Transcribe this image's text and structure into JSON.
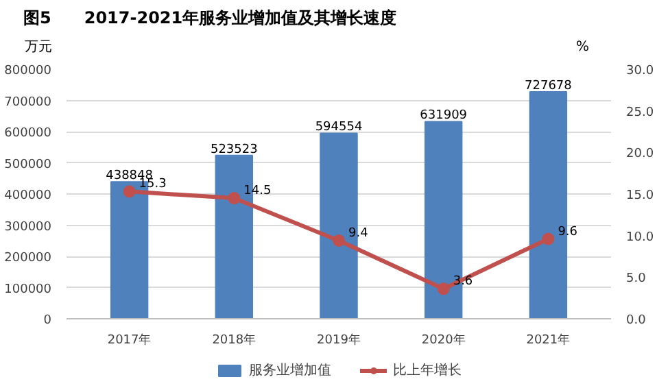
{
  "chart_data": {
    "type": "bar",
    "title": "图5　　2017-2021年服务业增加值及其增长速度",
    "ylabel": "万元",
    "y2label": "%",
    "categories": [
      "2017年",
      "2018年",
      "2019年",
      "2020年",
      "2021年"
    ],
    "series": [
      {
        "name": "服务业增加值",
        "color": "#4f81bd",
        "values": [
          438848,
          523523,
          594554,
          631909,
          727678
        ]
      },
      {
        "name": "比上年增长",
        "type": "line",
        "axis": "y2",
        "color": "#c0504d",
        "marker": "circle",
        "values": [
          15.3,
          14.5,
          9.4,
          3.6,
          9.6
        ]
      }
    ],
    "ylim": [
      0,
      800000
    ],
    "yticks": [
      0,
      100000,
      200000,
      300000,
      400000,
      500000,
      600000,
      700000,
      800000
    ],
    "y2lim": [
      0,
      30
    ],
    "y2ticks": [
      {
        "value": 0,
        "label": "0.0"
      },
      {
        "value": 5,
        "label": "5.0"
      },
      {
        "value": 10,
        "label": "10.0"
      },
      {
        "value": 15,
        "label": "15.0"
      },
      {
        "value": 20,
        "label": "20.0"
      },
      {
        "value": 25,
        "label": "25.0"
      },
      {
        "value": 30,
        "label": "30.0"
      }
    ],
    "grid": "y",
    "legend": "bottom",
    "data_labels": true
  }
}
